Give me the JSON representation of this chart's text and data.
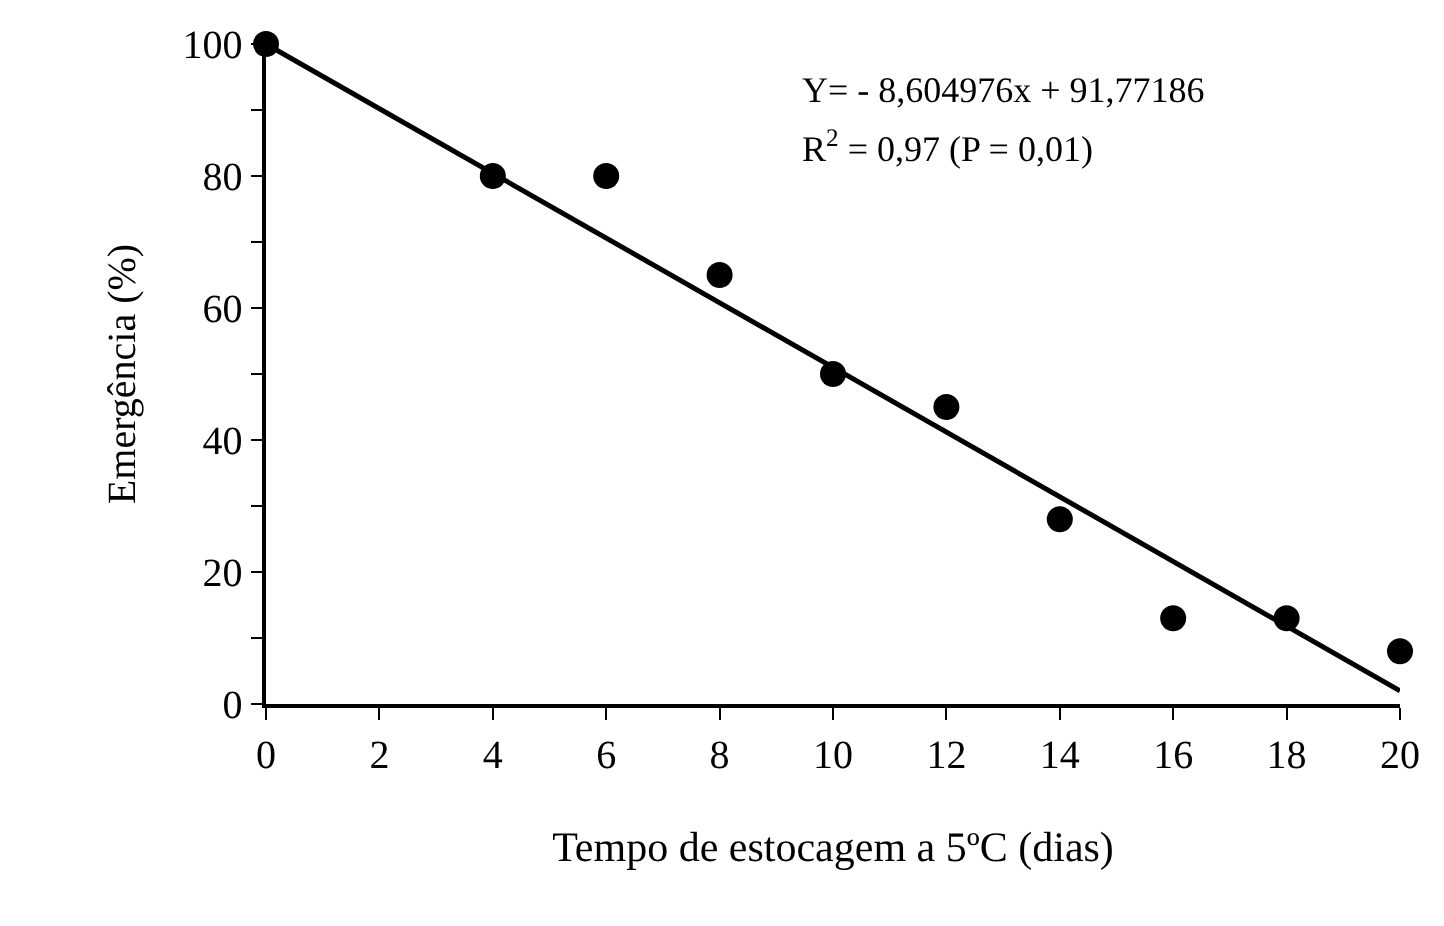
{
  "chart_data": {
    "type": "scatter",
    "xlabel": "Tempo de estocagem a 5ºC (dias)",
    "ylabel": "Emergência (%)",
    "series": [
      {
        "color": "#000000",
        "marker": "circle",
        "x": [
          0,
          4,
          6,
          8,
          10,
          12,
          14,
          16,
          18,
          20
        ],
        "values": [
          100,
          80,
          80,
          65,
          50,
          45,
          28,
          13,
          13,
          8
        ]
      },
      {
        "type": "line",
        "color": "#000000",
        "marker": "none",
        "line_style": "solid",
        "x": [
          0,
          20
        ],
        "values": [
          100,
          2
        ]
      }
    ],
    "xlim": [
      0,
      20
    ],
    "xticks": [
      0,
      2,
      4,
      6,
      8,
      10,
      12,
      14,
      16,
      18,
      20
    ],
    "ylim": [
      0,
      100
    ],
    "yticks": [
      0,
      {
        "value": 10,
        "label": null
      },
      20,
      {
        "value": 30,
        "label": null
      },
      40,
      {
        "value": 50,
        "label": null
      },
      60,
      {
        "value": 70,
        "label": null
      },
      80,
      {
        "value": 90,
        "label": null
      },
      100
    ],
    "annotations": [
      "Y= - 8,604976x + 91,77186",
      "R$^{2}$ = 0,97 (P = 0,01)"
    ]
  }
}
